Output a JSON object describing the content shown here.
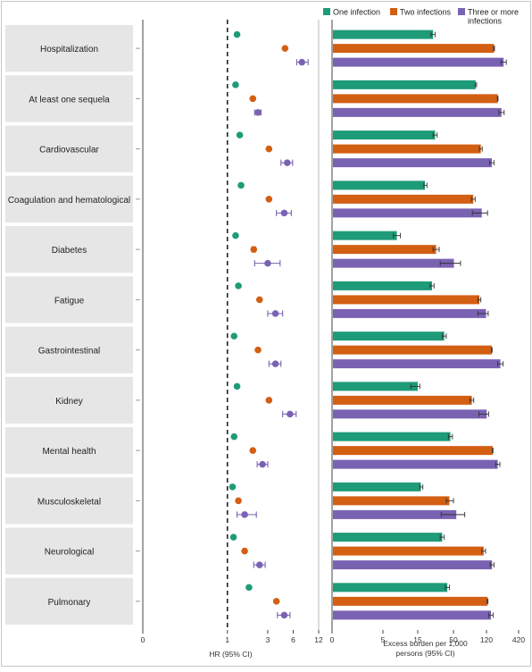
{
  "colors": {
    "one": "#1e9b78",
    "two": "#d35f13",
    "three": "#7a62b3",
    "label_bg": "#e6e6e6",
    "axis": "#444444"
  },
  "chart_data": [
    {
      "type": "scatter",
      "xlabel": "HR (95% CI)",
      "x_scale": "log",
      "xlim": [
        0.1,
        12
      ],
      "x_ticks": [
        "0",
        "1",
        "3",
        "6",
        "12"
      ],
      "reference_line": 1,
      "categories": [
        "Hospitalization",
        "At least one sequela",
        "Cardiovascular",
        "Coagulation and hematological",
        "Diabetes",
        "Fatigue",
        "Gastrointestinal",
        "Kidney",
        "Mental health",
        "Musculoskeletal",
        "Neurological",
        "Pulmonary"
      ],
      "series": [
        {
          "name": "One infection",
          "values": [
            1.3,
            1.25,
            1.4,
            1.45,
            1.25,
            1.35,
            1.2,
            1.3,
            1.2,
            1.15,
            1.18,
            1.8
          ],
          "lower": [
            1.3,
            1.25,
            1.4,
            1.45,
            1.25,
            1.35,
            1.2,
            1.3,
            1.2,
            1.15,
            1.18,
            1.8
          ],
          "upper": [
            1.3,
            1.25,
            1.4,
            1.45,
            1.25,
            1.35,
            1.2,
            1.3,
            1.2,
            1.15,
            1.18,
            1.8
          ]
        },
        {
          "name": "Two infections",
          "values": [
            4.8,
            2.0,
            3.1,
            3.1,
            2.05,
            2.4,
            2.3,
            3.1,
            2.0,
            1.35,
            1.6,
            3.8
          ],
          "lower": [
            4.7,
            1.95,
            3.0,
            3.0,
            1.95,
            2.35,
            2.25,
            3.0,
            1.95,
            1.3,
            1.55,
            3.7
          ],
          "upper": [
            4.9,
            2.05,
            3.2,
            3.2,
            2.15,
            2.45,
            2.35,
            3.2,
            2.05,
            1.4,
            1.65,
            3.9
          ]
        },
        {
          "name": "Three or more infections",
          "values": [
            7.6,
            2.3,
            5.1,
            4.7,
            3.0,
            3.7,
            3.7,
            5.5,
            2.6,
            1.6,
            2.4,
            4.7
          ],
          "lower": [
            6.6,
            2.1,
            4.3,
            3.8,
            2.1,
            3.0,
            3.1,
            4.5,
            2.25,
            1.3,
            2.05,
            3.9
          ],
          "upper": [
            9.0,
            2.5,
            5.9,
            5.7,
            4.2,
            4.5,
            4.3,
            6.5,
            3.0,
            2.2,
            2.8,
            5.5
          ]
        }
      ]
    },
    {
      "type": "bar",
      "orientation": "horizontal",
      "xlabel": "Excess burden per 1,000 persons (95% CI)",
      "x_ticks": [
        {
          "label": "0",
          "value": 0
        },
        {
          "label": "5",
          "value": 5
        },
        {
          "label": "15",
          "value": 15
        },
        {
          "label": "50",
          "value": 50
        },
        {
          "label": "120",
          "value": 120
        },
        {
          "label": "420",
          "value": 420
        }
      ],
      "categories": [
        "Hospitalization",
        "At least one sequela",
        "Cardiovascular",
        "Coagulation and hematological",
        "Diabetes",
        "Fatigue",
        "Gastrointestinal",
        "Kidney",
        "Mental health",
        "Musculoskeletal",
        "Neurological",
        "Pulmonary"
      ],
      "series": [
        {
          "name": "One infection",
          "values": [
            30,
            97,
            32,
            22,
            9,
            29,
            41,
            15,
            47,
            18,
            39,
            44
          ],
          "lower": [
            28,
            96,
            30,
            21,
            8,
            27,
            39,
            13,
            45,
            17,
            37,
            42
          ],
          "upper": [
            32,
            99,
            34,
            24,
            10,
            31,
            43,
            17,
            49,
            20,
            41,
            46
          ]
        },
        {
          "name": "Two infections",
          "values": [
            190,
            225,
            108,
            92,
            33,
            105,
            170,
            89,
            178,
            46,
            114,
            130
          ],
          "lower": [
            185,
            222,
            105,
            88,
            30,
            102,
            167,
            85,
            175,
            43,
            110,
            126
          ],
          "upper": [
            195,
            228,
            111,
            96,
            36,
            108,
            173,
            93,
            181,
            50,
            118,
            134
          ]
        },
        {
          "name": "Three or more infections",
          "values": [
            280,
            260,
            170,
            110,
            51,
            119,
            250,
            122,
            225,
            56,
            172,
            162
          ],
          "lower": [
            255,
            235,
            150,
            90,
            37,
            102,
            225,
            104,
            205,
            38,
            154,
            142
          ],
          "upper": [
            305,
            285,
            190,
            130,
            65,
            136,
            275,
            140,
            245,
            74,
            190,
            182
          ]
        }
      ],
      "legend": {
        "placement": "top-right",
        "entries": [
          "One infection",
          "Two infections",
          "Three or more infections"
        ]
      }
    }
  ]
}
